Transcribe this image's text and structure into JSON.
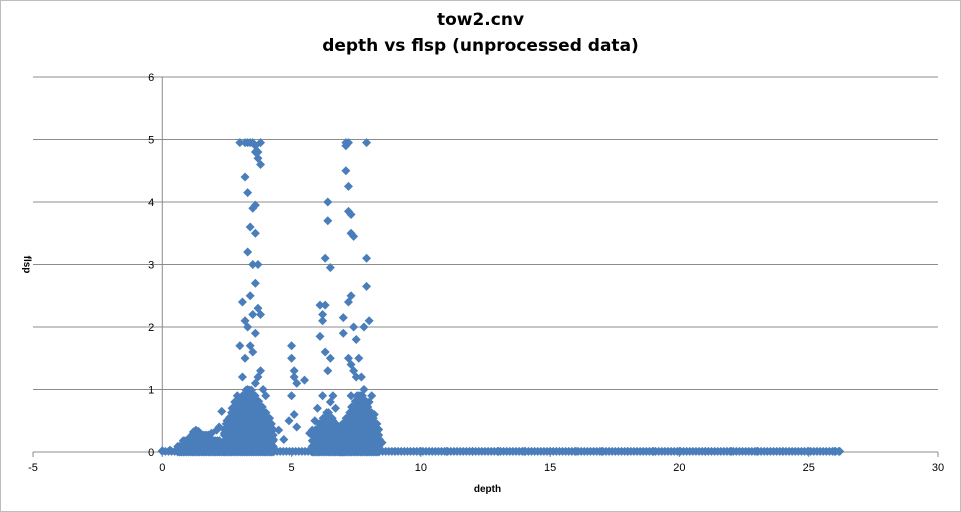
{
  "chart_data": {
    "type": "scatter",
    "title": "tow2.cnv",
    "subtitle": "depth vs flsp (unprocessed data)",
    "xlabel": "depth",
    "ylabel": "flsp",
    "xlim": [
      -5,
      30
    ],
    "ylim": [
      0,
      6
    ],
    "xticks": [
      "-5",
      "0",
      "5",
      "10",
      "15",
      "20",
      "25",
      "30"
    ],
    "yticks": [
      "0",
      "1",
      "2",
      "3",
      "4",
      "5",
      "6"
    ],
    "grid": "horizontal",
    "marker": "diamond",
    "color": "#4a7ebb",
    "series": [
      {
        "x": [
          0.0,
          0.3,
          0.6,
          0.9,
          1.0,
          1.1,
          1.2,
          1.3,
          1.4,
          1.5,
          1.6,
          1.7,
          1.8,
          1.9,
          2.0,
          2.1,
          2.2,
          2.3,
          2.4,
          2.5,
          2.6,
          2.7,
          2.8,
          2.9,
          3.0,
          3.0,
          3.1,
          3.1,
          3.2,
          3.2,
          3.2,
          3.2,
          3.3,
          3.3,
          3.3,
          3.3,
          3.3,
          3.4,
          3.4,
          3.4,
          3.4,
          3.4,
          3.4,
          3.5,
          3.5,
          3.5,
          3.5,
          3.5,
          3.5,
          3.6,
          3.6,
          3.6,
          3.6,
          3.6,
          3.6,
          3.6,
          3.7,
          3.7,
          3.7,
          3.7,
          3.7,
          3.7,
          3.8,
          3.8,
          3.8,
          3.8,
          3.9,
          3.9,
          3.9,
          4.0,
          4.0,
          4.1,
          4.2,
          4.3,
          4.5,
          4.7,
          4.9,
          5.0,
          5.0,
          5.0,
          5.1,
          5.1,
          5.1,
          5.2,
          5.2,
          5.5,
          5.7,
          5.8,
          5.9,
          6.0,
          6.1,
          6.1,
          6.2,
          6.2,
          6.2,
          6.3,
          6.3,
          6.3,
          6.4,
          6.4,
          6.4,
          6.5,
          6.5,
          6.5,
          6.6,
          6.6,
          6.7,
          6.8,
          6.9,
          7.0,
          7.0,
          7.1,
          7.1,
          7.1,
          7.2,
          7.2,
          7.2,
          7.2,
          7.2,
          7.3,
          7.3,
          7.3,
          7.3,
          7.3,
          7.4,
          7.4,
          7.4,
          7.4,
          7.5,
          7.5,
          7.5,
          7.6,
          7.6,
          7.7,
          7.7,
          7.8,
          7.8,
          7.9,
          7.9,
          7.9,
          8.0,
          8.0,
          8.1,
          8.2,
          8.3,
          8.4,
          8.5,
          9,
          10,
          11,
          12,
          13,
          14,
          15,
          16,
          17,
          18,
          19,
          20,
          21,
          22,
          23,
          24,
          25,
          26,
          26.2
        ],
        "y": [
          0.02,
          0.03,
          0.05,
          0.08,
          0.15,
          0.25,
          0.32,
          0.35,
          0.33,
          0.28,
          0.2,
          0.15,
          0.25,
          0.3,
          0.18,
          0.35,
          0.4,
          0.65,
          0.3,
          0.5,
          0.55,
          0.7,
          0.8,
          0.9,
          1.7,
          4.95,
          1.2,
          2.4,
          4.95,
          4.4,
          2.1,
          1.5,
          4.95,
          4.15,
          3.2,
          2.0,
          1.0,
          4.95,
          3.6,
          2.5,
          1.7,
          0.8,
          0.4,
          4.95,
          3.9,
          3.0,
          2.2,
          1.6,
          0.6,
          4.9,
          4.8,
          3.95,
          3.5,
          2.7,
          1.9,
          1.1,
          4.8,
          4.7,
          3.0,
          2.3,
          1.2,
          0.5,
          4.95,
          4.6,
          2.2,
          1.3,
          1.0,
          0.6,
          0.3,
          0.9,
          0.4,
          0.5,
          0.3,
          0.2,
          0.35,
          0.2,
          0.5,
          1.7,
          1.5,
          0.9,
          1.3,
          1.2,
          0.6,
          1.1,
          0.4,
          1.15,
          0.3,
          0.35,
          0.5,
          0.7,
          1.85,
          2.35,
          2.1,
          2.2,
          0.9,
          3.1,
          2.35,
          1.6,
          4.0,
          3.7,
          1.3,
          2.95,
          1.5,
          0.8,
          0.9,
          0.5,
          0.7,
          0.4,
          0.3,
          1.9,
          2.15,
          4.95,
          4.9,
          4.5,
          4.95,
          4.25,
          3.85,
          2.4,
          1.5,
          3.8,
          3.5,
          2.5,
          1.4,
          0.9,
          3.45,
          2.0,
          1.3,
          0.7,
          1.8,
          1.2,
          0.7,
          1.5,
          0.9,
          1.2,
          0.5,
          2.0,
          1.0,
          4.95,
          3.1,
          2.65,
          2.1,
          0.8,
          0.9,
          0.6,
          0.3,
          0.2,
          0.15,
          0.01,
          0.01,
          0.01,
          0.01,
          0.01,
          0.01,
          0.01,
          0.01,
          0.01,
          0.01,
          0.01,
          0.01,
          0.01,
          0.01,
          0.01,
          0.01,
          0.01,
          0.01,
          0.01
        ]
      }
    ]
  }
}
